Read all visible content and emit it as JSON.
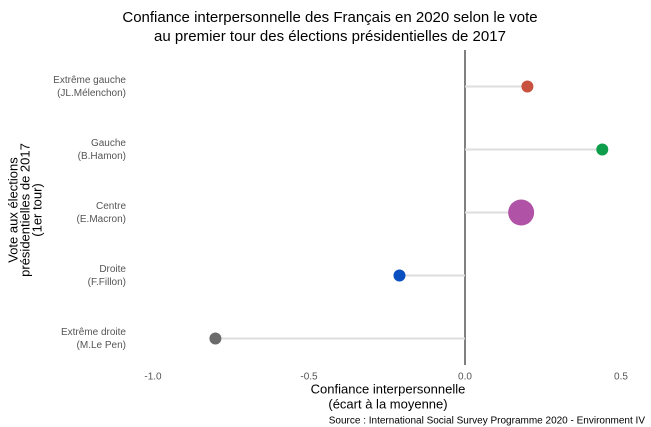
{
  "chart_data": {
    "type": "lollipop",
    "title": [
      "Confiance interpersonnelle des Français en 2020 selon le vote",
      "au premier tour des élections présidentielles de 2017"
    ],
    "xlabel": [
      "Confiance interpersonnelle",
      "(écart à la moyenne)"
    ],
    "ylabel": [
      "Vote aux élections",
      "présidentielles de 2017",
      "(1er tour)"
    ],
    "source": "Source : International Social Survey Programme 2020 - Environment IV",
    "categories": [
      [
        "Extrême gauche",
        "(JL.Mélenchon)"
      ],
      [
        "Gauche",
        "(B.Hamon)"
      ],
      [
        "Centre",
        "(E.Macron)"
      ],
      [
        "Droite",
        "(F.Fillon)"
      ],
      [
        "Extrême droite",
        "(M.Le Pen)"
      ]
    ],
    "values": [
      0.2,
      0.44,
      0.18,
      -0.21,
      -0.8
    ],
    "sizes": [
      6,
      6,
      13,
      6,
      6
    ],
    "colors": [
      "#c8523f",
      "#0e9d4b",
      "#b053a6",
      "#0a4fc0",
      "#6b6b6b"
    ],
    "xlim": [
      -1,
      0.5
    ],
    "xticks": [
      {
        "value": -1,
        "label": "-1.0"
      },
      -0.5,
      {
        "value": 0,
        "label": "0.0"
      },
      0.5
    ]
  }
}
